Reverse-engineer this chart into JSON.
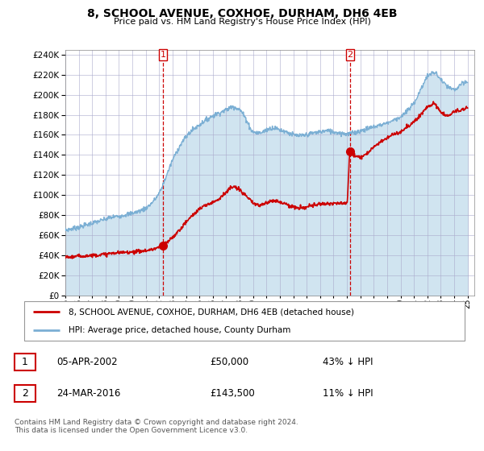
{
  "title": "8, SCHOOL AVENUE, COXHOE, DURHAM, DH6 4EB",
  "subtitle": "Price paid vs. HM Land Registry's House Price Index (HPI)",
  "yticks": [
    0,
    20000,
    40000,
    60000,
    80000,
    100000,
    120000,
    140000,
    160000,
    180000,
    200000,
    220000,
    240000
  ],
  "ylim": [
    0,
    245000
  ],
  "hpi_color": "#7bafd4",
  "hpi_fill": "#d0e4f0",
  "price_color": "#cc0000",
  "marker_color": "#cc0000",
  "sale1_x": 2002.27,
  "sale1_y": 50000,
  "sale1_label": "1",
  "sale1_date": "05-APR-2002",
  "sale1_price": "£50,000",
  "sale1_pct": "43% ↓ HPI",
  "sale2_x": 2016.23,
  "sale2_y": 143500,
  "sale2_label": "2",
  "sale2_date": "24-MAR-2016",
  "sale2_price": "£143,500",
  "sale2_pct": "11% ↓ HPI",
  "legend_label1": "8, SCHOOL AVENUE, COXHOE, DURHAM, DH6 4EB (detached house)",
  "legend_label2": "HPI: Average price, detached house, County Durham",
  "footer": "Contains HM Land Registry data © Crown copyright and database right 2024.\nThis data is licensed under the Open Government Licence v3.0.",
  "xmin": 1995.0,
  "xmax": 2025.5,
  "xtick_years": [
    1995,
    1996,
    1997,
    1998,
    1999,
    2000,
    2001,
    2002,
    2003,
    2004,
    2005,
    2006,
    2007,
    2008,
    2009,
    2010,
    2011,
    2012,
    2013,
    2014,
    2015,
    2016,
    2017,
    2018,
    2019,
    2020,
    2021,
    2022,
    2023,
    2024,
    2025
  ],
  "hpi_anchors": [
    [
      1995.0,
      65000
    ],
    [
      1995.5,
      66500
    ],
    [
      1996.0,
      68000
    ],
    [
      1996.5,
      70000
    ],
    [
      1997.0,
      72000
    ],
    [
      1997.5,
      74000
    ],
    [
      1998.0,
      76000
    ],
    [
      1998.5,
      78000
    ],
    [
      1999.0,
      79000
    ],
    [
      1999.5,
      80500
    ],
    [
      2000.0,
      82000
    ],
    [
      2000.5,
      84000
    ],
    [
      2001.0,
      87000
    ],
    [
      2001.5,
      93000
    ],
    [
      2002.0,
      102000
    ],
    [
      2002.5,
      118000
    ],
    [
      2003.0,
      135000
    ],
    [
      2003.5,
      148000
    ],
    [
      2004.0,
      158000
    ],
    [
      2004.5,
      165000
    ],
    [
      2005.0,
      170000
    ],
    [
      2005.5,
      175000
    ],
    [
      2006.0,
      179000
    ],
    [
      2006.5,
      182000
    ],
    [
      2007.0,
      185000
    ],
    [
      2007.5,
      188000
    ],
    [
      2008.0,
      185000
    ],
    [
      2008.5,
      175000
    ],
    [
      2009.0,
      163000
    ],
    [
      2009.5,
      162000
    ],
    [
      2010.0,
      165000
    ],
    [
      2010.5,
      167000
    ],
    [
      2011.0,
      165000
    ],
    [
      2011.5,
      163000
    ],
    [
      2012.0,
      160000
    ],
    [
      2012.5,
      159000
    ],
    [
      2013.0,
      160000
    ],
    [
      2013.5,
      162000
    ],
    [
      2014.0,
      163000
    ],
    [
      2014.5,
      164000
    ],
    [
      2015.0,
      163000
    ],
    [
      2015.5,
      162000
    ],
    [
      2016.0,
      161000
    ],
    [
      2016.5,
      162000
    ],
    [
      2017.0,
      164000
    ],
    [
      2017.5,
      166000
    ],
    [
      2018.0,
      168000
    ],
    [
      2018.5,
      170000
    ],
    [
      2019.0,
      172000
    ],
    [
      2019.5,
      175000
    ],
    [
      2020.0,
      178000
    ],
    [
      2020.5,
      184000
    ],
    [
      2021.0,
      192000
    ],
    [
      2021.5,
      205000
    ],
    [
      2022.0,
      218000
    ],
    [
      2022.5,
      222000
    ],
    [
      2023.0,
      215000
    ],
    [
      2023.5,
      208000
    ],
    [
      2024.0,
      205000
    ],
    [
      2024.5,
      210000
    ],
    [
      2025.0,
      213000
    ]
  ],
  "price_anchors": [
    [
      1995.0,
      38000
    ],
    [
      1995.5,
      38500
    ],
    [
      1996.0,
      39000
    ],
    [
      1996.5,
      39500
    ],
    [
      1997.0,
      40000
    ],
    [
      1997.5,
      40500
    ],
    [
      1998.0,
      41000
    ],
    [
      1998.5,
      42000
    ],
    [
      1999.0,
      42500
    ],
    [
      1999.5,
      43000
    ],
    [
      2000.0,
      43500
    ],
    [
      2000.5,
      44000
    ],
    [
      2001.0,
      44500
    ],
    [
      2001.5,
      46000
    ],
    [
      2002.0,
      48000
    ],
    [
      2002.27,
      50000
    ],
    [
      2002.5,
      52000
    ],
    [
      2003.0,
      58000
    ],
    [
      2003.5,
      65000
    ],
    [
      2004.0,
      73000
    ],
    [
      2004.5,
      80000
    ],
    [
      2005.0,
      86000
    ],
    [
      2005.5,
      90000
    ],
    [
      2006.0,
      93000
    ],
    [
      2006.5,
      97000
    ],
    [
      2007.0,
      103000
    ],
    [
      2007.5,
      108000
    ],
    [
      2008.0,
      105000
    ],
    [
      2008.5,
      99000
    ],
    [
      2009.0,
      92000
    ],
    [
      2009.5,
      90000
    ],
    [
      2010.0,
      92000
    ],
    [
      2010.5,
      95000
    ],
    [
      2011.0,
      93000
    ],
    [
      2011.5,
      91000
    ],
    [
      2012.0,
      88000
    ],
    [
      2012.5,
      87000
    ],
    [
      2013.0,
      88000
    ],
    [
      2013.5,
      90000
    ],
    [
      2014.0,
      91000
    ],
    [
      2014.5,
      91500
    ],
    [
      2015.0,
      92000
    ],
    [
      2015.5,
      91500
    ],
    [
      2016.0,
      92000
    ],
    [
      2016.23,
      143500
    ],
    [
      2016.5,
      140000
    ],
    [
      2017.0,
      138000
    ],
    [
      2017.5,
      142000
    ],
    [
      2018.0,
      148000
    ],
    [
      2018.5,
      153000
    ],
    [
      2019.0,
      157000
    ],
    [
      2019.5,
      161000
    ],
    [
      2020.0,
      163000
    ],
    [
      2020.5,
      168000
    ],
    [
      2021.0,
      173000
    ],
    [
      2021.5,
      180000
    ],
    [
      2022.0,
      188000
    ],
    [
      2022.5,
      191000
    ],
    [
      2023.0,
      183000
    ],
    [
      2023.5,
      179000
    ],
    [
      2024.0,
      183000
    ],
    [
      2024.5,
      185000
    ],
    [
      2025.0,
      187000
    ]
  ]
}
